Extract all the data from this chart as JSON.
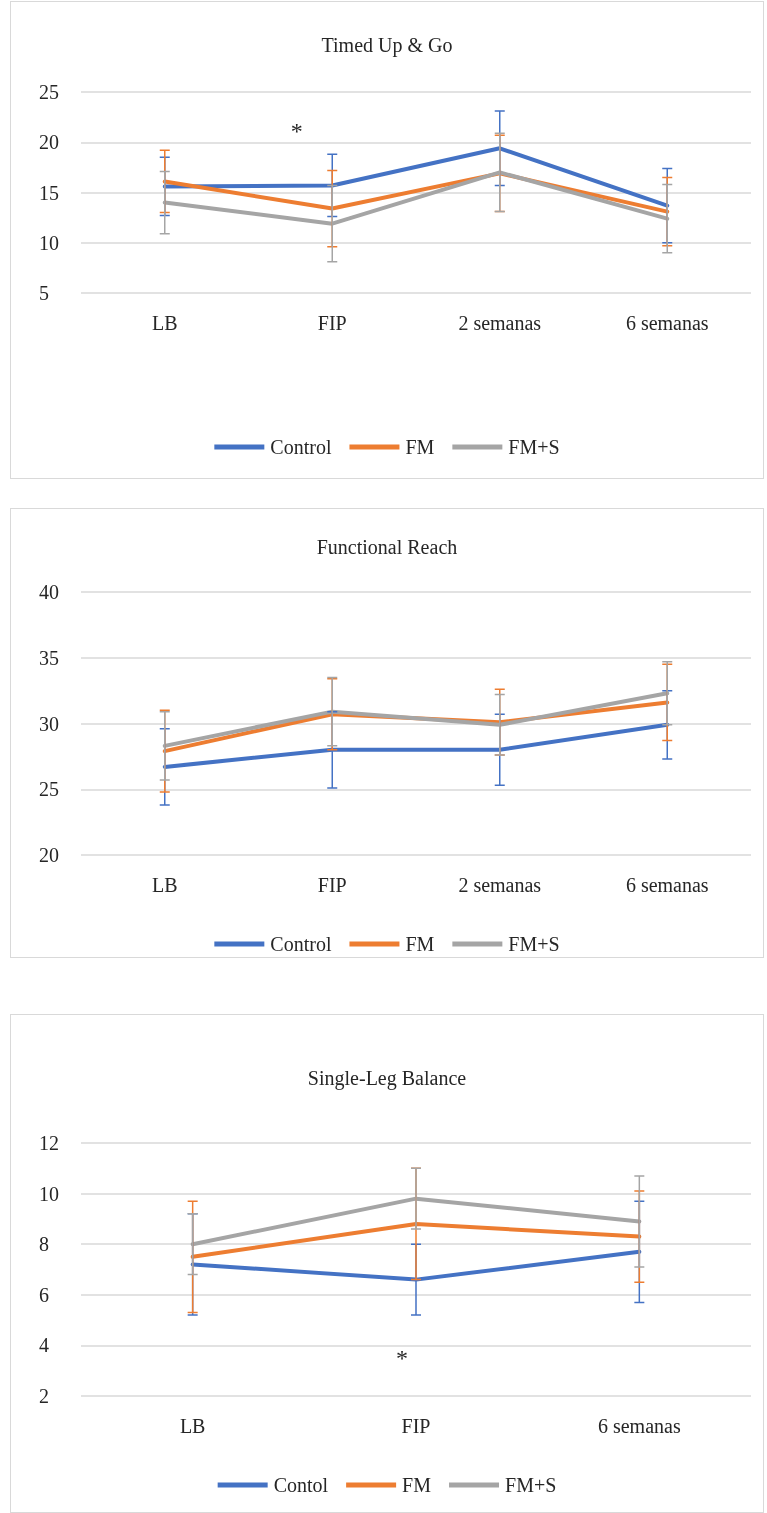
{
  "chart_data": [
    {
      "type": "line",
      "title": "Timed Up & Go",
      "categories": [
        "LB",
        "FIP",
        "2 semanas",
        "6 semanas"
      ],
      "ylim": [
        5,
        25
      ],
      "yticks": [
        5,
        10,
        15,
        20,
        25
      ],
      "grid": "y",
      "legend": "bottom",
      "marker": "none",
      "line_style": "solid",
      "series": [
        {
          "name": "Control",
          "color": "#4472c4",
          "values": [
            15.6,
            15.7,
            19.4,
            13.7
          ],
          "errors": [
            2.9,
            3.1,
            3.7,
            3.7
          ]
        },
        {
          "name": "FM",
          "color": "#ed7d31",
          "values": [
            16.1,
            13.4,
            16.9,
            13.1
          ],
          "errors": [
            3.1,
            3.8,
            3.8,
            3.4
          ]
        },
        {
          "name": "FM+S",
          "color": "#a5a5a5",
          "values": [
            14.0,
            11.9,
            17.0,
            12.4
          ],
          "errors": [
            3.1,
            3.8,
            3.9,
            3.4
          ]
        }
      ],
      "annotations": [
        "*"
      ]
    },
    {
      "type": "line",
      "title": "Functional Reach",
      "categories": [
        "LB",
        "FIP",
        "2 semanas",
        "6 semanas"
      ],
      "ylim": [
        20,
        40
      ],
      "yticks": [
        20,
        25,
        30,
        35,
        40
      ],
      "grid": "y",
      "legend": "bottom",
      "marker": "none",
      "line_style": "solid",
      "series": [
        {
          "name": "Control",
          "color": "#4472c4",
          "values": [
            26.7,
            28.0,
            28.0,
            29.9
          ],
          "errors": [
            2.9,
            2.9,
            2.7,
            2.6
          ]
        },
        {
          "name": "FM",
          "color": "#ed7d31",
          "values": [
            27.9,
            30.7,
            30.1,
            31.6
          ],
          "errors": [
            3.1,
            2.7,
            2.5,
            2.9
          ]
        },
        {
          "name": "FM+S",
          "color": "#a5a5a5",
          "values": [
            28.3,
            30.9,
            29.9,
            32.3
          ],
          "errors": [
            2.6,
            2.6,
            2.3,
            2.4
          ]
        }
      ]
    },
    {
      "type": "line",
      "title": "Single-Leg Balance",
      "categories": [
        "LB",
        "FIP",
        "6 semanas"
      ],
      "ylim": [
        2,
        12
      ],
      "yticks": [
        2,
        4,
        6,
        8,
        10,
        12
      ],
      "grid": "y",
      "legend": "bottom",
      "marker": "none",
      "line_style": "solid",
      "series": [
        {
          "name": "Contol",
          "color": "#4472c4",
          "values": [
            7.2,
            6.6,
            7.7
          ],
          "errors": [
            2.0,
            1.4,
            2.0
          ]
        },
        {
          "name": "FM",
          "color": "#ed7d31",
          "values": [
            7.5,
            8.8,
            8.3
          ],
          "errors": [
            2.2,
            2.2,
            1.8
          ]
        },
        {
          "name": "FM+S",
          "color": "#a5a5a5",
          "values": [
            8.0,
            9.8,
            8.9
          ],
          "errors": [
            1.2,
            1.2,
            1.8
          ]
        }
      ],
      "annotations": [
        "*"
      ]
    }
  ]
}
